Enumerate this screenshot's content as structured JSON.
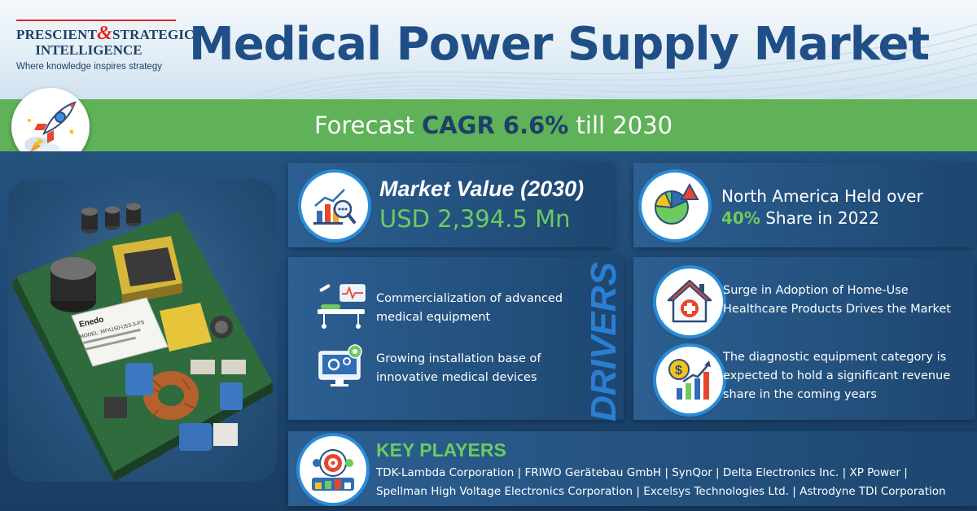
{
  "brand": {
    "name_part1": "PRESCIENT",
    "ampersand": "&",
    "name_part2": "STRATEGIC",
    "name_line2": "INTELLIGENCE",
    "tagline": "Where knowledge inspires strategy"
  },
  "title": "Medical Power Supply Market",
  "forecast": {
    "prefix": "Forecast",
    "cagr_label": "CAGR 6.6%",
    "suffix": "till 2030"
  },
  "market_value": {
    "label": "Market Value (2030)",
    "value": "USD 2,394.5 Mn"
  },
  "regional_share": {
    "line1": "North America Held over",
    "share": "40%",
    "line2": "Share in 2022"
  },
  "drivers": {
    "heading": "DRIVERS",
    "items": [
      {
        "text": "Commercialization of advanced medical equipment",
        "icon": "hospital-bed-monitor-icon"
      },
      {
        "text": "Growing installation base of innovative medical devices",
        "icon": "computer-gear-icon"
      }
    ]
  },
  "trends": {
    "items": [
      {
        "text": "Surge in Adoption of Home-Use Healthcare Products Drives the Market",
        "icon": "home-healthcare-icon"
      },
      {
        "text": "The diagnostic equipment category is expected to hold a significant revenue share in the coming years",
        "icon": "revenue-growth-icon"
      }
    ]
  },
  "key_players": {
    "heading": "KEY PLAYERS",
    "line1": "TDK-Lambda Corporation | FRIWO Gerätebau GmbH | SynQor | Delta Electronics Inc. | XP Power |",
    "line2": "Spellman High Voltage Electronics Corporation | Excelsys Technologies Ltd. | Astrodyne TDI Corporation"
  },
  "product_image": {
    "brand_label": "Enedo",
    "model_label": "MODEL: MFA150-U53-3-PS"
  },
  "colors": {
    "title_blue": "#1f4f86",
    "accent_green": "#6ccb5f",
    "band_green": "#5fb257",
    "logo_red": "#e2231a",
    "card_blue": "#24527f",
    "background_navy": "#1b3f63"
  }
}
